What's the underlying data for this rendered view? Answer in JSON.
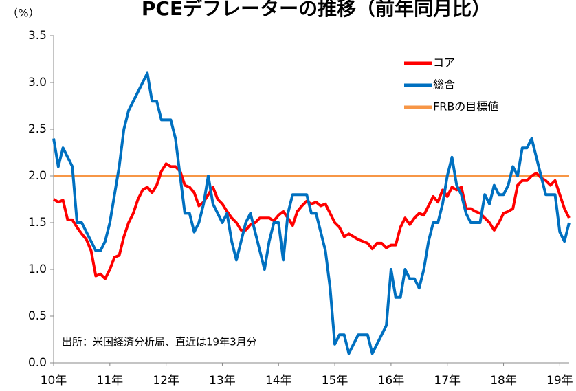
{
  "chart_data": {
    "type": "line",
    "title": "PCEデフレーターの推移（前年同月比）",
    "y_unit": "（%）",
    "annotation": "出所：米国経済分析局、直近は19年3月分",
    "categories": [
      "10年",
      null,
      null,
      null,
      null,
      null,
      null,
      null,
      null,
      null,
      null,
      null,
      "11年",
      null,
      null,
      null,
      null,
      null,
      null,
      null,
      null,
      null,
      null,
      null,
      "12年",
      null,
      null,
      null,
      null,
      null,
      null,
      null,
      null,
      null,
      null,
      null,
      "13年",
      null,
      null,
      null,
      null,
      null,
      null,
      null,
      null,
      null,
      null,
      null,
      "14年",
      null,
      null,
      null,
      null,
      null,
      null,
      null,
      null,
      null,
      null,
      null,
      "15年",
      null,
      null,
      null,
      null,
      null,
      null,
      null,
      null,
      null,
      null,
      null,
      "16年",
      null,
      null,
      null,
      null,
      null,
      null,
      null,
      null,
      null,
      null,
      null,
      "17年",
      null,
      null,
      null,
      null,
      null,
      null,
      null,
      null,
      null,
      null,
      null,
      "18年",
      null,
      null,
      null,
      null,
      null,
      null,
      null,
      null,
      null,
      null,
      null,
      "19年",
      null,
      null
    ],
    "series": [
      {
        "name": "コア",
        "color": "#ff0000",
        "values": [
          1.75,
          1.72,
          1.74,
          1.53,
          1.53,
          1.45,
          1.38,
          1.32,
          1.2,
          0.93,
          0.95,
          0.9,
          1.0,
          1.13,
          1.15,
          1.35,
          1.5,
          1.6,
          1.75,
          1.85,
          1.88,
          1.82,
          1.9,
          2.05,
          2.13,
          2.1,
          2.1,
          2.05,
          1.9,
          1.88,
          1.82,
          1.68,
          1.72,
          1.8,
          1.88,
          1.75,
          1.7,
          1.62,
          1.55,
          1.5,
          1.42,
          1.42,
          1.48,
          1.5,
          1.55,
          1.55,
          1.55,
          1.52,
          1.58,
          1.62,
          1.55,
          1.47,
          1.62,
          1.68,
          1.73,
          1.7,
          1.72,
          1.68,
          1.7,
          1.6,
          1.5,
          1.45,
          1.35,
          1.38,
          1.35,
          1.32,
          1.3,
          1.28,
          1.22,
          1.28,
          1.28,
          1.23,
          1.26,
          1.26,
          1.45,
          1.55,
          1.48,
          1.55,
          1.6,
          1.58,
          1.68,
          1.78,
          1.72,
          1.85,
          1.78,
          1.88,
          1.85,
          1.88,
          1.65,
          1.65,
          1.62,
          1.6,
          1.55,
          1.5,
          1.42,
          1.5,
          1.6,
          1.62,
          1.65,
          1.9,
          1.95,
          1.95,
          2.0,
          2.03,
          1.98,
          1.95,
          1.9,
          1.95,
          1.8,
          1.65,
          1.55
        ]
      },
      {
        "name": "総合",
        "color": "#0070c0",
        "values": [
          2.4,
          2.1,
          2.3,
          2.2,
          2.1,
          1.5,
          1.5,
          1.4,
          1.3,
          1.2,
          1.2,
          1.3,
          1.5,
          1.8,
          2.1,
          2.5,
          2.7,
          2.8,
          2.9,
          3.0,
          3.1,
          2.8,
          2.8,
          2.6,
          2.6,
          2.6,
          2.4,
          2.0,
          1.6,
          1.6,
          1.4,
          1.5,
          1.7,
          2.0,
          1.7,
          1.6,
          1.5,
          1.6,
          1.3,
          1.1,
          1.3,
          1.5,
          1.6,
          1.4,
          1.2,
          1.0,
          1.3,
          1.5,
          1.5,
          1.1,
          1.6,
          1.8,
          1.8,
          1.8,
          1.8,
          1.6,
          1.6,
          1.4,
          1.2,
          0.8,
          0.2,
          0.3,
          0.3,
          0.1,
          0.2,
          0.3,
          0.3,
          0.3,
          0.1,
          0.2,
          0.3,
          0.4,
          1.0,
          0.7,
          0.7,
          1.0,
          0.9,
          0.9,
          0.8,
          1.0,
          1.3,
          1.5,
          1.5,
          1.7,
          2.0,
          2.2,
          1.9,
          1.8,
          1.6,
          1.5,
          1.5,
          1.5,
          1.8,
          1.7,
          1.9,
          1.8,
          1.8,
          1.9,
          2.1,
          2.0,
          2.3,
          2.3,
          2.4,
          2.2,
          2.0,
          1.8,
          1.8,
          1.8,
          1.4,
          1.3,
          1.5
        ]
      },
      {
        "name": "FRBの目標値",
        "color": "#f79646",
        "values": [
          2,
          2,
          2,
          2,
          2,
          2,
          2,
          2,
          2,
          2,
          2,
          2,
          2,
          2,
          2,
          2,
          2,
          2,
          2,
          2,
          2,
          2,
          2,
          2,
          2,
          2,
          2,
          2,
          2,
          2,
          2,
          2,
          2,
          2,
          2,
          2,
          2,
          2,
          2,
          2,
          2,
          2,
          2,
          2,
          2,
          2,
          2,
          2,
          2,
          2,
          2,
          2,
          2,
          2,
          2,
          2,
          2,
          2,
          2,
          2,
          2,
          2,
          2,
          2,
          2,
          2,
          2,
          2,
          2,
          2,
          2,
          2,
          2,
          2,
          2,
          2,
          2,
          2,
          2,
          2,
          2,
          2,
          2,
          2,
          2,
          2,
          2,
          2,
          2,
          2,
          2,
          2,
          2,
          2,
          2,
          2,
          2,
          2,
          2,
          2,
          2,
          2,
          2,
          2,
          2,
          2,
          2,
          2,
          2,
          2,
          2
        ]
      }
    ],
    "ylim": [
      0,
      3.5
    ],
    "yticks": [
      {
        "value": 0,
        "label": "0.0"
      },
      0.5,
      {
        "value": 1,
        "label": "1.0"
      },
      1.5,
      {
        "value": 2,
        "label": "2.0"
      },
      2.5,
      {
        "value": 3,
        "label": "3.0"
      },
      3.5
    ],
    "grid": false,
    "legend": "upper right"
  }
}
